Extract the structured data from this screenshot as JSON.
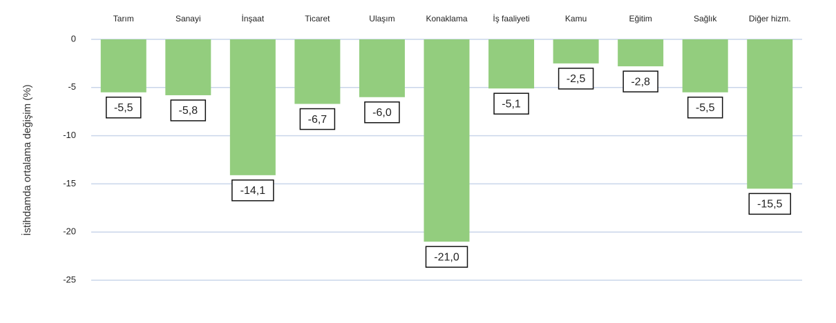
{
  "chart_data": {
    "type": "bar",
    "ylabel": "İstihdamda ortalama değişim (%)",
    "categories": [
      "Tarım",
      "Sanayi",
      "İnşaat",
      "Ticaret",
      "Ulaşım",
      "Konaklama",
      "İş faaliyeti",
      "Kamu",
      "Eğitim",
      "Sağlık",
      "Diğer hizm."
    ],
    "values": [
      -5.5,
      -5.8,
      -14.1,
      -6.7,
      -6.0,
      -21.0,
      -5.1,
      -2.5,
      -2.8,
      -5.5,
      -15.5
    ],
    "value_labels": [
      "-5,5",
      "-5,8",
      "-14,1",
      "-6,7",
      "-6,0",
      "-21,0",
      "-5,1",
      "-2,5",
      "-2,8",
      "-5,5",
      "-15,5"
    ],
    "color": "#93cd7e",
    "ylim": [
      -25,
      0
    ],
    "yticks": [
      0,
      -5,
      -10,
      -15,
      -20,
      -25
    ],
    "grid": true
  }
}
